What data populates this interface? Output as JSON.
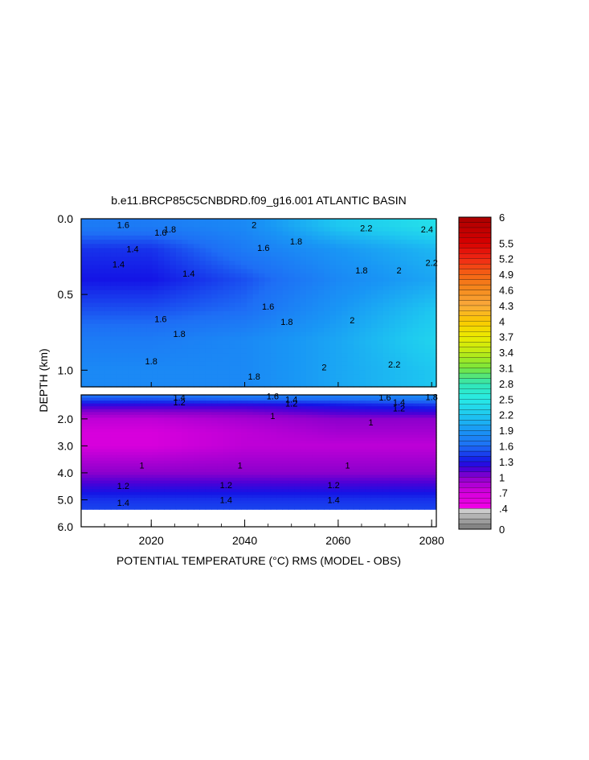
{
  "chart_data": {
    "type": "heatmap",
    "title": "b.e11.BRCP85C5CNBDRD.f09_g16.001 ATLANTIC BASIN",
    "xlabel": "POTENTIAL TEMPERATURE (°C) RMS (MODEL - OBS)",
    "ylabel": "DEPTH (km)",
    "x_range": [
      2005,
      2081
    ],
    "x_ticks": [
      {
        "value": 2020,
        "label": "2020"
      },
      {
        "value": 2040,
        "label": "2040"
      },
      {
        "value": 2060,
        "label": "2060"
      },
      {
        "value": 2080,
        "label": "2080"
      }
    ],
    "upper_panel": {
      "depth_range": [
        0.0,
        1.11
      ],
      "y_ticks": [
        {
          "value": 0.0,
          "label": "0.0"
        },
        {
          "value": 0.5,
          "label": "0.5"
        },
        {
          "value": 1.0,
          "label": "1.0"
        }
      ],
      "depths": [
        0.05,
        0.2,
        0.4,
        0.6,
        0.8,
        1.0
      ],
      "years": [
        2005,
        2020,
        2040,
        2060,
        2081
      ],
      "values": [
        [
          1.7,
          1.7,
          1.8,
          2.2,
          2.4
        ],
        [
          1.4,
          1.4,
          1.7,
          1.9,
          2.1
        ],
        [
          1.3,
          1.3,
          1.5,
          1.8,
          2.0
        ],
        [
          1.5,
          1.5,
          1.6,
          1.9,
          2.2
        ],
        [
          1.7,
          1.7,
          1.8,
          2.0,
          2.3
        ],
        [
          1.8,
          1.8,
          1.8,
          2.0,
          2.2
        ]
      ],
      "contour_labels": [
        {
          "year": 2014,
          "depth": 0.04,
          "label": "1.6"
        },
        {
          "year": 2024,
          "depth": 0.07,
          "label": "1.8"
        },
        {
          "year": 2042,
          "depth": 0.04,
          "label": "2"
        },
        {
          "year": 2066,
          "depth": 0.06,
          "label": "2.2"
        },
        {
          "year": 2079,
          "depth": 0.07,
          "label": "2.4"
        },
        {
          "year": 2022,
          "depth": 0.09,
          "label": "1.6"
        },
        {
          "year": 2051,
          "depth": 0.15,
          "label": "1.8"
        },
        {
          "year": 2044,
          "depth": 0.19,
          "label": "1.6"
        },
        {
          "year": 2016,
          "depth": 0.2,
          "label": "1.4"
        },
        {
          "year": 2013,
          "depth": 0.3,
          "label": "1.4"
        },
        {
          "year": 2028,
          "depth": 0.36,
          "label": "1.4"
        },
        {
          "year": 2065,
          "depth": 0.34,
          "label": "1.8"
        },
        {
          "year": 2073,
          "depth": 0.34,
          "label": "2"
        },
        {
          "year": 2080,
          "depth": 0.29,
          "label": "2.2"
        },
        {
          "year": 2045,
          "depth": 0.58,
          "label": "1.6"
        },
        {
          "year": 2022,
          "depth": 0.66,
          "label": "1.6"
        },
        {
          "year": 2049,
          "depth": 0.68,
          "label": "1.8"
        },
        {
          "year": 2063,
          "depth": 0.67,
          "label": "2"
        },
        {
          "year": 2026,
          "depth": 0.76,
          "label": "1.8"
        },
        {
          "year": 2020,
          "depth": 0.94,
          "label": "1.8"
        },
        {
          "year": 2057,
          "depth": 0.98,
          "label": "2"
        },
        {
          "year": 2072,
          "depth": 0.96,
          "label": "2.2"
        },
        {
          "year": 2042,
          "depth": 1.04,
          "label": "1.8"
        }
      ]
    },
    "lower_panel": {
      "depth_range": [
        1.11,
        6.0
      ],
      "y_ticks": [
        {
          "value": 2.0,
          "label": "2.0"
        },
        {
          "value": 3.0,
          "label": "3.0"
        },
        {
          "value": 4.0,
          "label": "4.0"
        },
        {
          "value": 5.0,
          "label": "5.0"
        },
        {
          "value": 6.0,
          "label": "6.0"
        }
      ],
      "depths": [
        1.2,
        1.5,
        2.0,
        2.5,
        3.0,
        3.5,
        4.0,
        4.5,
        5.0,
        5.3
      ],
      "years": [
        2005,
        2020,
        2040,
        2060,
        2081
      ],
      "values": [
        [
          1.6,
          1.6,
          1.7,
          1.7,
          1.8
        ],
        [
          1.2,
          1.2,
          1.2,
          1.3,
          1.4
        ],
        [
          0.8,
          0.8,
          0.9,
          1.0,
          1.0
        ],
        [
          0.7,
          0.7,
          0.8,
          0.9,
          0.9
        ],
        [
          0.7,
          0.7,
          0.8,
          0.8,
          0.8
        ],
        [
          0.85,
          0.85,
          0.9,
          0.9,
          0.9
        ],
        [
          1.0,
          1.0,
          1.0,
          1.0,
          1.0
        ],
        [
          1.2,
          1.2,
          1.2,
          1.2,
          1.2
        ],
        [
          1.4,
          1.4,
          1.4,
          1.4,
          1.4
        ],
        [
          1.45,
          1.45,
          1.45,
          1.45,
          1.45
        ]
      ],
      "data_bottom_depth": 5.35,
      "contour_labels": [
        {
          "year": 2026,
          "depth": 1.2,
          "label": "1.4"
        },
        {
          "year": 2026,
          "depth": 1.38,
          "label": "1.2"
        },
        {
          "year": 2046,
          "depth": 1.15,
          "label": "1.6"
        },
        {
          "year": 2050,
          "depth": 1.28,
          "label": "1.4"
        },
        {
          "year": 2050,
          "depth": 1.42,
          "label": "1.2"
        },
        {
          "year": 2070,
          "depth": 1.2,
          "label": "1.6"
        },
        {
          "year": 2073,
          "depth": 1.38,
          "label": "1.4"
        },
        {
          "year": 2073,
          "depth": 1.6,
          "label": "1.2"
        },
        {
          "year": 2080,
          "depth": 1.18,
          "label": "1.8"
        },
        {
          "year": 2046,
          "depth": 1.88,
          "label": "1"
        },
        {
          "year": 2067,
          "depth": 2.12,
          "label": "1"
        },
        {
          "year": 2018,
          "depth": 3.72,
          "label": "1"
        },
        {
          "year": 2039,
          "depth": 3.72,
          "label": "1"
        },
        {
          "year": 2062,
          "depth": 3.72,
          "label": "1"
        },
        {
          "year": 2014,
          "depth": 4.48,
          "label": "1.2"
        },
        {
          "year": 2036,
          "depth": 4.45,
          "label": "1.2"
        },
        {
          "year": 2059,
          "depth": 4.45,
          "label": "1.2"
        },
        {
          "year": 2014,
          "depth": 5.1,
          "label": "1.4"
        },
        {
          "year": 2036,
          "depth": 5.0,
          "label": "1.4"
        },
        {
          "year": 2059,
          "depth": 5.0,
          "label": "1.4"
        }
      ]
    },
    "colorbar": {
      "min": 0,
      "max": 6,
      "labels": [
        {
          "value": 6,
          "label": "6"
        },
        {
          "value": 5.5,
          "label": "5.5"
        },
        {
          "value": 5.2,
          "label": "5.2"
        },
        {
          "value": 4.9,
          "label": "4.9"
        },
        {
          "value": 4.6,
          "label": "4.6"
        },
        {
          "value": 4.3,
          "label": "4.3"
        },
        {
          "value": 4,
          "label": "4"
        },
        {
          "value": 3.7,
          "label": "3.7"
        },
        {
          "value": 3.4,
          "label": "3.4"
        },
        {
          "value": 3.1,
          "label": "3.1"
        },
        {
          "value": 2.8,
          "label": "2.8"
        },
        {
          "value": 2.5,
          "label": "2.5"
        },
        {
          "value": 2.2,
          "label": "2.2"
        },
        {
          "value": 1.9,
          "label": "1.9"
        },
        {
          "value": 1.6,
          "label": "1.6"
        },
        {
          "value": 1.3,
          "label": "1.3"
        },
        {
          "value": 1,
          "label": "1"
        },
        {
          "value": 0.7,
          "label": ".7"
        },
        {
          "value": 0.4,
          "label": ".4"
        },
        {
          "value": 0,
          "label": "0"
        }
      ]
    },
    "colors": {
      "below_0_4": "#a0a0a0",
      "low": "#a000c8",
      "mid_low": "#3c2ce0",
      "mid": "#2878f0",
      "high": "#28dcf0",
      "top": "#d20000"
    }
  }
}
